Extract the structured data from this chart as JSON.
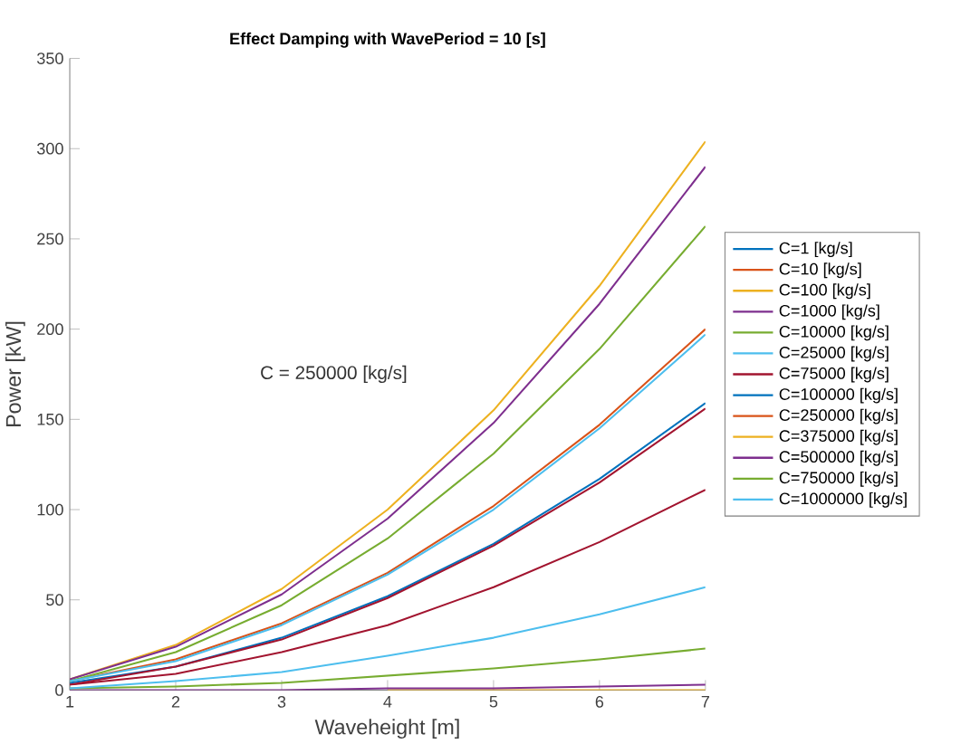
{
  "chart_data": {
    "type": "line",
    "title": "Effect Damping with WavePeriod = 10 [s]",
    "xlabel": "Waveheight [m]",
    "ylabel": "Power [kW]",
    "annotations": [
      "C = 250000 [kg/s]"
    ],
    "x": [
      1,
      2,
      3,
      4,
      5,
      6,
      7
    ],
    "xlim": [
      1,
      7
    ],
    "xticks": [
      1,
      2,
      3,
      4,
      5,
      6,
      7
    ],
    "ylim": [
      0,
      350
    ],
    "yticks": [
      0,
      50,
      100,
      150,
      200,
      250,
      300,
      350
    ],
    "legend": "right",
    "grid": false,
    "line_style": "solid",
    "marker": "none",
    "series": [
      {
        "name": "C=1 [kg/s]",
        "color": "#0072bd",
        "values": [
          null,
          null,
          null,
          null,
          null,
          null,
          null
        ]
      },
      {
        "name": "C=10 [kg/s]",
        "color": "#d95319",
        "values": [
          null,
          null,
          null,
          null,
          null,
          null,
          null
        ]
      },
      {
        "name": "C=100 [kg/s]",
        "color": "#edb120",
        "values": [
          null,
          null,
          null,
          0,
          0,
          0,
          0
        ]
      },
      {
        "name": "C=1000 [kg/s]",
        "color": "#7e2f8e",
        "values": [
          0,
          0,
          0,
          1,
          1,
          2,
          3
        ]
      },
      {
        "name": "C=10000 [kg/s]",
        "color": "#77ac30",
        "values": [
          1,
          2,
          4,
          8,
          12,
          17,
          23
        ]
      },
      {
        "name": "C=25000 [kg/s]",
        "color": "#4dbeee",
        "values": [
          1,
          5,
          10,
          19,
          29,
          42,
          57
        ]
      },
      {
        "name": "C=75000 [kg/s]",
        "color": "#a2142f",
        "values": [
          3,
          9,
          21,
          36,
          57,
          82,
          111
        ]
      },
      {
        "name": "C=100000 [kg/s]",
        "color": "#0072bd",
        "values": [
          4,
          13,
          29,
          52,
          81,
          117,
          159
        ]
      },
      {
        "name": "C=250000 [kg/s]",
        "color": "#d95319",
        "values": [
          5,
          17,
          37,
          65,
          102,
          147,
          200
        ]
      },
      {
        "name": "C=375000 [kg/s]",
        "color": "#edb120",
        "values": [
          6,
          25,
          56,
          100,
          155,
          224,
          304
        ]
      },
      {
        "name": "C=500000 [kg/s]",
        "color": "#7e2f8e",
        "values": [
          6,
          24,
          53,
          95,
          148,
          214,
          290
        ]
      },
      {
        "name": "C=750000 [kg/s]",
        "color": "#77ac30",
        "values": [
          5,
          21,
          47,
          84,
          131,
          189,
          257
        ]
      },
      {
        "name": "C=1000000 [kg/s]",
        "color": "#4dbeee",
        "values": [
          5,
          16,
          36,
          64,
          100,
          145,
          197
        ]
      },
      {
        "color": "#a2142f",
        "values": [
          3,
          13,
          28,
          51,
          80,
          115,
          156
        ]
      }
    ]
  }
}
